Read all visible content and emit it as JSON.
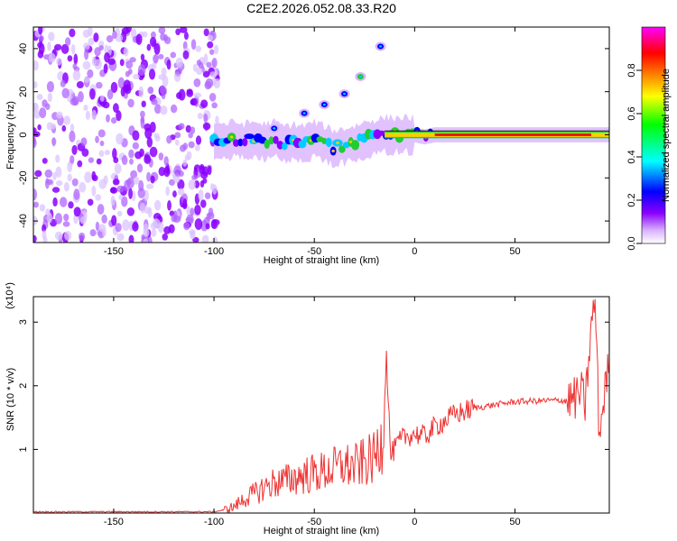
{
  "title": "C2E2.2026.052.08.33.R20",
  "chart_data": [
    {
      "type": "heatmap",
      "xlabel": "Height of straight line (km)",
      "ylabel": "Frequency (Hz)",
      "xlim": [
        -190,
        97
      ],
      "ylim": [
        -50,
        50
      ],
      "x_ticks": [
        -150,
        -100,
        -50,
        0,
        50
      ],
      "y_ticks": [
        -40,
        -20,
        0,
        20,
        40
      ],
      "noise_region_x": [
        -190,
        -100
      ],
      "main_ridge": [
        {
          "x": -100,
          "y": -2
        },
        {
          "x": -95,
          "y": -3
        },
        {
          "x": -90,
          "y": -2
        },
        {
          "x": -85,
          "y": -3
        },
        {
          "x": -80,
          "y": -2
        },
        {
          "x": -75,
          "y": -3
        },
        {
          "x": -70,
          "y": -2
        },
        {
          "x": -65,
          "y": -4
        },
        {
          "x": -60,
          "y": -3
        },
        {
          "x": -55,
          "y": -4
        },
        {
          "x": -50,
          "y": -2
        },
        {
          "x": -45,
          "y": -4
        },
        {
          "x": -40,
          "y": -6
        },
        {
          "x": -35,
          "y": -5
        },
        {
          "x": -30,
          "y": -4
        },
        {
          "x": -25,
          "y": -2
        },
        {
          "x": -20,
          "y": -1
        },
        {
          "x": -15,
          "y": 0
        },
        {
          "x": -10,
          "y": 0
        },
        {
          "x": 0,
          "y": 0
        },
        {
          "x": 5,
          "y": -1
        },
        {
          "x": 10,
          "y": 0
        },
        {
          "x": 20,
          "y": 0
        },
        {
          "x": 40,
          "y": 0
        },
        {
          "x": 60,
          "y": 0
        },
        {
          "x": 80,
          "y": 0
        },
        {
          "x": 95,
          "y": 0
        }
      ],
      "secondary_trace": [
        {
          "x": -70,
          "y": 3
        },
        {
          "x": -55,
          "y": 10
        },
        {
          "x": -45,
          "y": 14
        },
        {
          "x": -35,
          "y": 19
        },
        {
          "x": -27,
          "y": 27
        },
        {
          "x": -17,
          "y": 41
        }
      ],
      "colorbar": {
        "label": "Normalized spectral amplitude",
        "range": [
          0,
          1
        ],
        "ticks": [
          "0.0",
          "0.2",
          "0.4",
          "0.6",
          "0.8"
        ],
        "colors": [
          "#ffffff",
          "#d9b3ff",
          "#8a00ff",
          "#0000ff",
          "#00ffff",
          "#00ff00",
          "#ffff00",
          "#ff8000",
          "#ff0000",
          "#ff00ff"
        ]
      }
    },
    {
      "type": "line",
      "xlabel": "Height of straight line (km)",
      "ylabel": "SNR (10 * v/v)",
      "scale_label": "(x10⁴)",
      "xlim": [
        -190,
        97
      ],
      "ylim": [
        0,
        3.4
      ],
      "x_ticks": [
        -150,
        -100,
        -50,
        0,
        50
      ],
      "y_ticks": [
        1,
        2,
        3
      ],
      "color": "#ee3333",
      "series": [
        {
          "x": [
            -190,
            -100,
            -95,
            -90,
            -85,
            -80,
            -75,
            -70,
            -65,
            -60,
            -55,
            -50,
            -45,
            -40,
            -35,
            -30,
            -25,
            -20,
            -16,
            -14,
            -12,
            -8,
            -5,
            0,
            5,
            10,
            15,
            20,
            25,
            30,
            40,
            50,
            60,
            70,
            75,
            80,
            83,
            85,
            88,
            90,
            92,
            95,
            97
          ],
          "y": [
            0.02,
            0.02,
            0.05,
            0.1,
            0.22,
            0.3,
            0.4,
            0.48,
            0.5,
            0.55,
            0.6,
            0.62,
            0.65,
            0.7,
            0.75,
            0.72,
            0.8,
            0.85,
            1.2,
            2.5,
            0.9,
            1.1,
            1.2,
            1.25,
            1.2,
            1.35,
            1.45,
            1.55,
            1.6,
            1.65,
            1.7,
            1.75,
            1.76,
            1.77,
            1.77,
            1.8,
            1.9,
            1.7,
            2.9,
            3.35,
            1.2,
            2.0,
            2.3
          ]
        }
      ]
    }
  ]
}
